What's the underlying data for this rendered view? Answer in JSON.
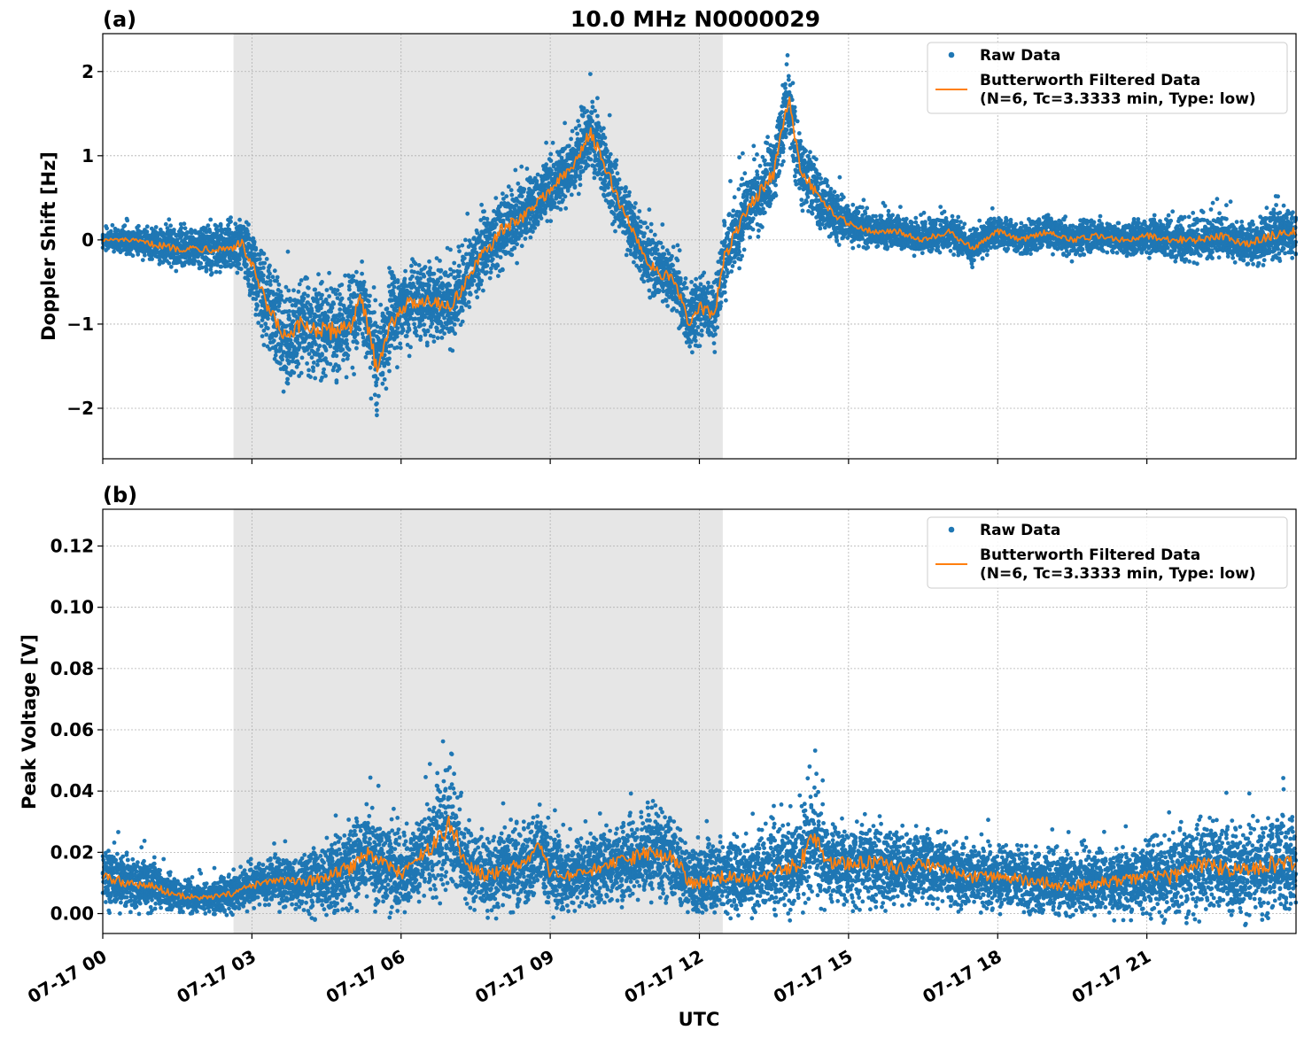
{
  "chart_data": [
    {
      "type": "scatter",
      "panel_label": "(a)",
      "title": "10.0 MHz N0000029",
      "xlabel": "",
      "ylabel": "Doppler Shift [Hz]",
      "ylim": [
        -2.6,
        2.45
      ],
      "yticks": [
        2,
        1,
        0,
        -1,
        -2
      ],
      "ytick_labels": [
        "2",
        "1",
        "0",
        "−1",
        "−2"
      ],
      "xlim_hours": [
        0,
        24
      ],
      "shaded_region_hours": [
        2.63,
        12.47
      ],
      "grid": true,
      "legend": "top-right",
      "legend_entries": [
        "Raw Data",
        "Butterworth Filtered Data",
        "(N=6, Tc=3.3333 min, Type: low)"
      ],
      "series": [
        {
          "name": "Raw Data",
          "color": "#1f77b4",
          "style": "points",
          "x_hours": [
            0,
            0.5,
            1,
            1.5,
            2,
            2.5,
            2.8,
            3,
            3.3,
            3.7,
            4,
            4.5,
            5,
            5.2,
            5.5,
            5.8,
            6,
            6.5,
            7,
            7.5,
            8,
            8.5,
            9,
            9.5,
            9.8,
            10,
            10.5,
            11,
            11.5,
            11.8,
            12,
            12.3,
            12.5,
            13,
            13.5,
            13.8,
            14,
            14.5,
            15,
            15.5,
            16,
            16.5,
            17,
            17.5,
            18,
            18.5,
            19,
            19.5,
            20,
            20.5,
            21,
            21.5,
            22,
            22.5,
            23,
            23.5,
            24
          ],
          "center": [
            0,
            0,
            -0.05,
            -0.1,
            -0.1,
            -0.1,
            -0.05,
            -0.3,
            -0.8,
            -1.2,
            -1.0,
            -1.1,
            -1.0,
            -0.7,
            -1.5,
            -1.0,
            -0.8,
            -0.7,
            -0.8,
            -0.3,
            0.1,
            0.3,
            0.6,
            0.9,
            1.3,
            1.0,
            0.3,
            -0.3,
            -0.5,
            -1.0,
            -0.8,
            -0.9,
            -0.2,
            0.4,
            0.8,
            1.7,
            0.9,
            0.4,
            0.2,
            0.1,
            0.1,
            0.0,
            0.1,
            -0.1,
            0.1,
            0.0,
            0.1,
            0.0,
            0.05,
            0.0,
            0.05,
            0.0,
            0.0,
            0.05,
            -0.05,
            0.05,
            0.1
          ],
          "spread": [
            0.1,
            0.15,
            0.2,
            0.25,
            0.3,
            0.3,
            0.35,
            0.5,
            0.55,
            0.6,
            0.6,
            0.6,
            0.6,
            0.55,
            0.6,
            0.55,
            0.5,
            0.5,
            0.45,
            0.45,
            0.45,
            0.4,
            0.4,
            0.4,
            0.45,
            0.45,
            0.4,
            0.4,
            0.4,
            0.4,
            0.4,
            0.4,
            0.45,
            0.45,
            0.45,
            0.5,
            0.45,
            0.35,
            0.25,
            0.2,
            0.2,
            0.2,
            0.2,
            0.2,
            0.2,
            0.2,
            0.2,
            0.2,
            0.2,
            0.2,
            0.2,
            0.25,
            0.25,
            0.25,
            0.25,
            0.3,
            0.3
          ]
        },
        {
          "name": "Butterworth Filtered Data",
          "color": "#ff7f0e",
          "style": "line",
          "x_hours": [
            0,
            0.5,
            1,
            1.5,
            2,
            2.5,
            2.8,
            3,
            3.3,
            3.7,
            4,
            4.5,
            5,
            5.2,
            5.5,
            5.8,
            6,
            6.5,
            7,
            7.5,
            8,
            8.5,
            9,
            9.5,
            9.8,
            10,
            10.5,
            11,
            11.5,
            11.8,
            12,
            12.3,
            12.5,
            13,
            13.5,
            13.8,
            14,
            14.5,
            15,
            15.5,
            16,
            16.5,
            17,
            17.5,
            18,
            18.5,
            19,
            19.5,
            20,
            20.5,
            21,
            21.5,
            22,
            22.5,
            23,
            23.5,
            24
          ],
          "y": [
            0,
            0,
            -0.05,
            -0.1,
            -0.1,
            -0.1,
            -0.05,
            -0.3,
            -0.8,
            -1.2,
            -1.0,
            -1.1,
            -1.0,
            -0.7,
            -1.5,
            -1.0,
            -0.8,
            -0.7,
            -0.8,
            -0.3,
            0.1,
            0.3,
            0.6,
            0.9,
            1.3,
            1.0,
            0.3,
            -0.3,
            -0.5,
            -1.0,
            -0.8,
            -0.9,
            -0.2,
            0.4,
            0.8,
            1.7,
            0.9,
            0.4,
            0.2,
            0.1,
            0.1,
            0.0,
            0.1,
            -0.1,
            0.1,
            0.0,
            0.1,
            0.0,
            0.05,
            0.0,
            0.05,
            0.0,
            0.0,
            0.05,
            -0.05,
            0.05,
            0.1
          ]
        }
      ]
    },
    {
      "type": "scatter",
      "panel_label": "(b)",
      "title": "",
      "xlabel": "UTC",
      "ylabel": "Peak Voltage [V]",
      "ylim": [
        -0.0065,
        0.132
      ],
      "yticks": [
        0.12,
        0.1,
        0.08,
        0.06,
        0.04,
        0.02,
        0.0
      ],
      "ytick_labels": [
        "0.12",
        "0.10",
        "0.08",
        "0.06",
        "0.04",
        "0.02",
        "0.00"
      ],
      "xlim_hours": [
        0,
        24
      ],
      "xticks_hours": [
        0,
        3,
        6,
        9,
        12,
        15,
        18,
        21
      ],
      "xtick_labels": [
        "07-17 00",
        "07-17 03",
        "07-17 06",
        "07-17 09",
        "07-17 12",
        "07-17 15",
        "07-17 18",
        "07-17 21"
      ],
      "shaded_region_hours": [
        2.63,
        12.47
      ],
      "grid": true,
      "legend": "top-right",
      "legend_entries": [
        "Raw Data",
        "Butterworth Filtered Data",
        "(N=6, Tc=3.3333 min, Type: low)"
      ],
      "series": [
        {
          "name": "Raw Data",
          "color": "#1f77b4",
          "style": "points",
          "x_hours": [
            0,
            0.5,
            1,
            1.5,
            2,
            2.5,
            3,
            3.5,
            4,
            4.5,
            5,
            5.3,
            5.7,
            6,
            6.5,
            6.8,
            7,
            7.3,
            7.7,
            8,
            8.5,
            8.8,
            9,
            9.5,
            10,
            10.5,
            11,
            11.5,
            11.8,
            12,
            12.5,
            13,
            13.5,
            14,
            14.3,
            14.6,
            15,
            15.5,
            16,
            16.5,
            17,
            17.5,
            18,
            18.5,
            19,
            19.5,
            20,
            20.5,
            21,
            21.5,
            22,
            22.5,
            23,
            23.5,
            24
          ],
          "center": [
            0.012,
            0.01,
            0.009,
            0.006,
            0.005,
            0.006,
            0.009,
            0.011,
            0.01,
            0.012,
            0.015,
            0.02,
            0.016,
            0.013,
            0.02,
            0.025,
            0.03,
            0.016,
            0.012,
            0.014,
            0.016,
            0.022,
            0.013,
            0.012,
            0.015,
            0.017,
            0.02,
            0.018,
            0.01,
            0.01,
            0.012,
            0.011,
            0.014,
            0.016,
            0.025,
            0.017,
            0.016,
            0.017,
            0.015,
            0.016,
            0.014,
            0.012,
            0.012,
            0.011,
            0.01,
            0.009,
            0.01,
            0.011,
            0.012,
            0.012,
            0.016,
            0.015,
            0.014,
            0.016,
            0.016
          ],
          "spread": [
            0.01,
            0.009,
            0.008,
            0.006,
            0.005,
            0.006,
            0.007,
            0.008,
            0.009,
            0.012,
            0.014,
            0.015,
            0.015,
            0.012,
            0.015,
            0.02,
            0.02,
            0.014,
            0.012,
            0.013,
            0.013,
            0.014,
            0.012,
            0.011,
            0.012,
            0.013,
            0.014,
            0.014,
            0.012,
            0.012,
            0.012,
            0.012,
            0.013,
            0.015,
            0.02,
            0.014,
            0.013,
            0.013,
            0.013,
            0.012,
            0.011,
            0.011,
            0.011,
            0.011,
            0.011,
            0.011,
            0.011,
            0.011,
            0.012,
            0.014,
            0.015,
            0.015,
            0.015,
            0.016,
            0.015
          ]
        },
        {
          "name": "Butterworth Filtered Data",
          "color": "#ff7f0e",
          "style": "line",
          "x_hours": [
            0,
            0.5,
            1,
            1.5,
            2,
            2.5,
            3,
            3.5,
            4,
            4.5,
            5,
            5.3,
            5.7,
            6,
            6.5,
            6.8,
            7,
            7.3,
            7.7,
            8,
            8.5,
            8.8,
            9,
            9.5,
            10,
            10.5,
            11,
            11.5,
            11.8,
            12,
            12.5,
            13,
            13.5,
            14,
            14.3,
            14.6,
            15,
            15.5,
            16,
            16.5,
            17,
            17.5,
            18,
            18.5,
            19,
            19.5,
            20,
            20.5,
            21,
            21.5,
            22,
            22.5,
            23,
            23.5,
            24
          ],
          "y": [
            0.012,
            0.01,
            0.009,
            0.006,
            0.005,
            0.006,
            0.009,
            0.011,
            0.01,
            0.012,
            0.015,
            0.02,
            0.016,
            0.013,
            0.02,
            0.025,
            0.03,
            0.016,
            0.012,
            0.014,
            0.016,
            0.022,
            0.013,
            0.012,
            0.015,
            0.017,
            0.02,
            0.018,
            0.01,
            0.01,
            0.012,
            0.011,
            0.014,
            0.016,
            0.025,
            0.017,
            0.016,
            0.017,
            0.015,
            0.016,
            0.014,
            0.012,
            0.012,
            0.011,
            0.01,
            0.009,
            0.01,
            0.011,
            0.012,
            0.012,
            0.016,
            0.015,
            0.014,
            0.016,
            0.016
          ]
        }
      ]
    }
  ]
}
